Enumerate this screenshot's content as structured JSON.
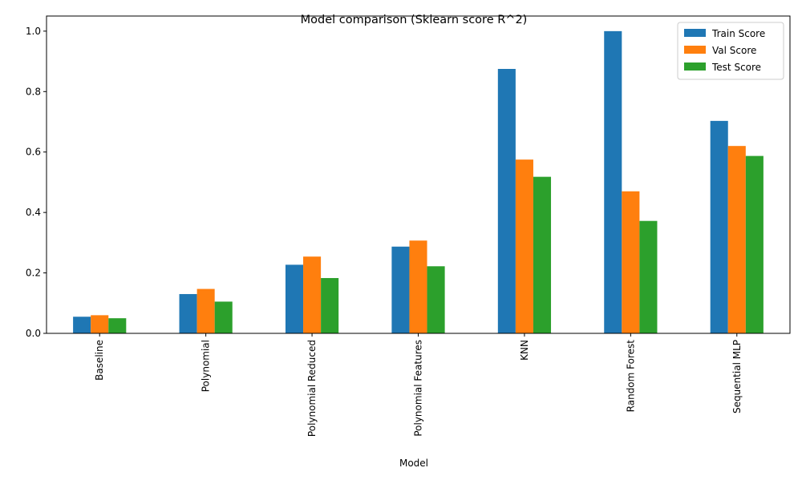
{
  "chart_data": {
    "type": "bar",
    "title": "Model comparison (Sklearn score R^2)",
    "xlabel": "Model",
    "ylabel": "",
    "ylim": [
      0,
      1.05
    ],
    "yticks": [
      "0.0",
      "0.2",
      "0.4",
      "0.6",
      "0.8",
      "1.0"
    ],
    "categories": [
      "Baseline",
      "Polynomial",
      "Polynomial Reduced",
      "Polynomial Features",
      "KNN",
      "Random Forest",
      "Sequential MLP"
    ],
    "series": [
      {
        "name": "Train Score",
        "color": "#1f77b4",
        "values": [
          0.055,
          0.13,
          0.227,
          0.287,
          0.875,
          1.0,
          0.703
        ]
      },
      {
        "name": "Val Score",
        "color": "#ff7f0e",
        "values": [
          0.06,
          0.147,
          0.254,
          0.307,
          0.575,
          0.47,
          0.62
        ]
      },
      {
        "name": "Test Score",
        "color": "#2ca02c",
        "values": [
          0.05,
          0.105,
          0.183,
          0.222,
          0.518,
          0.372,
          0.587
        ]
      }
    ],
    "grid": false,
    "legend_position": "top-right"
  }
}
